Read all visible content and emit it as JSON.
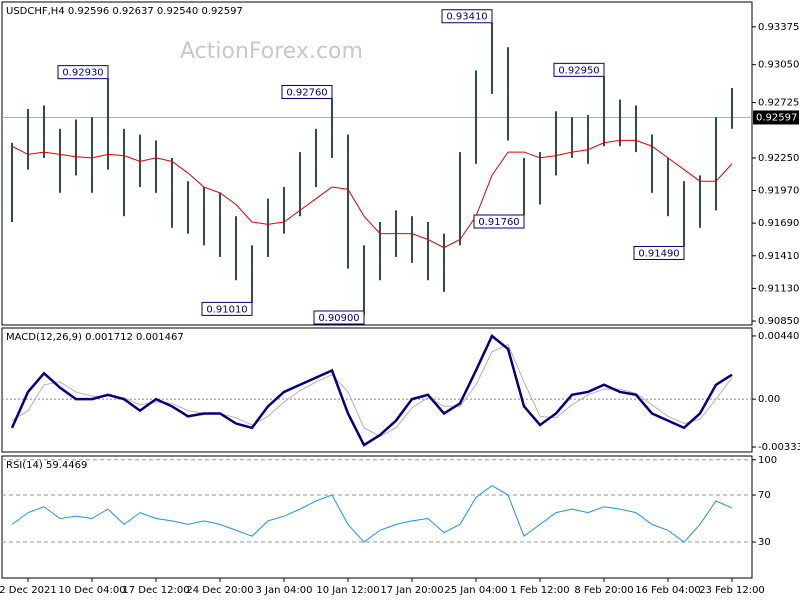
{
  "chart_data": [
    {
      "type": "hilo",
      "title": "USDCHF,H4  0.92596 0.92637 0.92540 0.92597",
      "watermark": "ActionForex.com",
      "color": "#2f4f4f",
      "ma_color": "#e00000",
      "high": [
        0.9238,
        0.9267,
        0.927,
        0.925,
        0.9258,
        0.926,
        0.9293,
        0.925,
        0.9245,
        0.924,
        0.9225,
        0.9205,
        0.92,
        0.9195,
        0.9175,
        0.915,
        0.919,
        0.92,
        0.923,
        0.925,
        0.9276,
        0.9245,
        0.915,
        0.917,
        0.918,
        0.9175,
        0.917,
        0.916,
        0.923,
        0.93,
        0.9341,
        0.932,
        0.9225,
        0.923,
        0.9265,
        0.926,
        0.9262,
        0.9295,
        0.9275,
        0.927,
        0.9245,
        0.9225,
        0.9205,
        0.921,
        0.926,
        0.9285
      ],
      "low": [
        0.917,
        0.9215,
        0.9225,
        0.9195,
        0.921,
        0.9195,
        0.9215,
        0.9175,
        0.92,
        0.9195,
        0.9165,
        0.916,
        0.915,
        0.914,
        0.912,
        0.9101,
        0.914,
        0.916,
        0.9175,
        0.92,
        0.9225,
        0.913,
        0.909,
        0.912,
        0.914,
        0.9135,
        0.912,
        0.911,
        0.915,
        0.922,
        0.928,
        0.924,
        0.9176,
        0.9185,
        0.921,
        0.9225,
        0.922,
        0.9235,
        0.9235,
        0.923,
        0.9195,
        0.9175,
        0.9149,
        0.9165,
        0.918,
        0.925
      ],
      "ma_values": [
        0.9235,
        0.9228,
        0.923,
        0.9228,
        0.9226,
        0.9225,
        0.9228,
        0.9227,
        0.9222,
        0.9225,
        0.9222,
        0.9212,
        0.92,
        0.9195,
        0.9185,
        0.917,
        0.9168,
        0.917,
        0.918,
        0.919,
        0.92,
        0.9198,
        0.9175,
        0.916,
        0.916,
        0.916,
        0.9155,
        0.9148,
        0.9155,
        0.9175,
        0.921,
        0.923,
        0.923,
        0.9225,
        0.9227,
        0.923,
        0.9232,
        0.9238,
        0.924,
        0.924,
        0.9235,
        0.9225,
        0.9215,
        0.9205,
        0.9205,
        0.922
      ],
      "current": {
        "value": 0.92597,
        "label": "0.92597"
      },
      "annotations": [
        {
          "value": 0.9293,
          "label": "0.92930"
        },
        {
          "value": 0.9276,
          "label": "0.92760"
        },
        {
          "value": 0.9341,
          "label": "0.93410"
        },
        {
          "value": 0.9295,
          "label": "0.92950"
        },
        {
          "value": 0.9101,
          "label": "0.91010"
        },
        {
          "value": 0.909,
          "label": "0.90900"
        },
        {
          "value": 0.9176,
          "label": "0.91760"
        },
        {
          "value": 0.9149,
          "label": "0.91490"
        }
      ],
      "ylim": [
        0.90816,
        0.93588
      ],
      "yticks": [
        0.93375,
        {
          "value": 0.9305,
          "label": "0.93050"
        },
        0.92725,
        {
          "value": 0.9225,
          "label": "0.92250"
        },
        {
          "value": 0.9197,
          "label": "0.91970"
        },
        {
          "value": 0.9169,
          "label": "0.91690"
        },
        {
          "value": 0.9141,
          "label": "0.91410"
        },
        {
          "value": 0.9113,
          "label": "0.91130"
        },
        {
          "value": 0.9085,
          "label": "0.90850"
        }
      ]
    },
    {
      "type": "macd",
      "title": "MACD(12,26,9) 0.001712 0.001467",
      "color": "#000080",
      "signal_color": "#c8a8a8",
      "macd": [
        -0.002,
        0.0005,
        0.0018,
        0.0008,
        0,
        0,
        0.0003,
        0,
        -0.0008,
        0,
        -0.0005,
        -0.0012,
        -0.001,
        -0.001,
        -0.0017,
        -0.002,
        -0.0005,
        0.0005,
        0.001,
        0.0015,
        0.002,
        -0.001,
        -0.0032,
        -0.0025,
        -0.0015,
        0,
        0.0003,
        -0.001,
        -0.0003,
        0.002,
        0.0044,
        0.0035,
        -0.0005,
        -0.0018,
        -0.001,
        0.0003,
        0.0005,
        0.001,
        0.0005,
        0.0003,
        -0.001,
        -0.0015,
        -0.002,
        -0.001,
        0.001,
        0.0017
      ],
      "signal": [
        -0.0015,
        -0.0008,
        0.001,
        0.0012,
        0.0005,
        0.0002,
        0.0002,
        0.0001,
        -0.0004,
        -0.0002,
        -0.0003,
        -0.0008,
        -0.001,
        -0.001,
        -0.0013,
        -0.0018,
        -0.0012,
        -0.0002,
        0.0006,
        0.0012,
        0.0017,
        0.0005,
        -0.002,
        -0.0026,
        -0.002,
        -0.0006,
        0.0001,
        -0.0005,
        -0.0005,
        0.001,
        0.0033,
        0.0038,
        0.0012,
        -0.0012,
        -0.0013,
        -0.0004,
        0.0003,
        0.0007,
        0.0007,
        0.0004,
        -0.0004,
        -0.0012,
        -0.0017,
        -0.0014,
        0,
        0.0015
      ],
      "ylim": [
        -0.003684,
        0.004956
      ],
      "yticks": [
        0.004403,
        {
          "value": 0,
          "label": "0.00"
        },
        -0.003338
      ]
    },
    {
      "type": "line",
      "title": "RSI(14) 59.4469",
      "color": "#1e90ff",
      "grid": "dashed",
      "values": [
        45,
        55,
        60,
        50,
        52,
        50,
        58,
        45,
        55,
        50,
        48,
        45,
        48,
        45,
        40,
        35,
        48,
        52,
        58,
        65,
        70,
        45,
        30,
        40,
        45,
        48,
        50,
        38,
        45,
        68,
        78,
        70,
        35,
        45,
        55,
        58,
        55,
        60,
        58,
        55,
        45,
        40,
        30,
        45,
        65,
        59
      ],
      "ylim": [
        -0.6,
        103.2
      ],
      "yticks": [
        100,
        70,
        30
      ],
      "categories": [
        null,
        "2 Dec 2021",
        null,
        null,
        null,
        "10 Dec 04:00",
        null,
        null,
        null,
        "17 Dec 12:00",
        null,
        null,
        null,
        "24 Dec 20:00",
        null,
        null,
        null,
        "3 Jan 04:00",
        null,
        null,
        null,
        "10 Jan 12:00",
        null,
        null,
        null,
        "17 Jan 20:00",
        null,
        null,
        null,
        "25 Jan 04:00",
        null,
        null,
        null,
        "1 Feb 12:00",
        null,
        null,
        null,
        "8 Feb 20:00",
        null,
        null,
        null,
        "16 Feb 04:00",
        null,
        null,
        null,
        "23 Feb 12:00"
      ]
    }
  ]
}
